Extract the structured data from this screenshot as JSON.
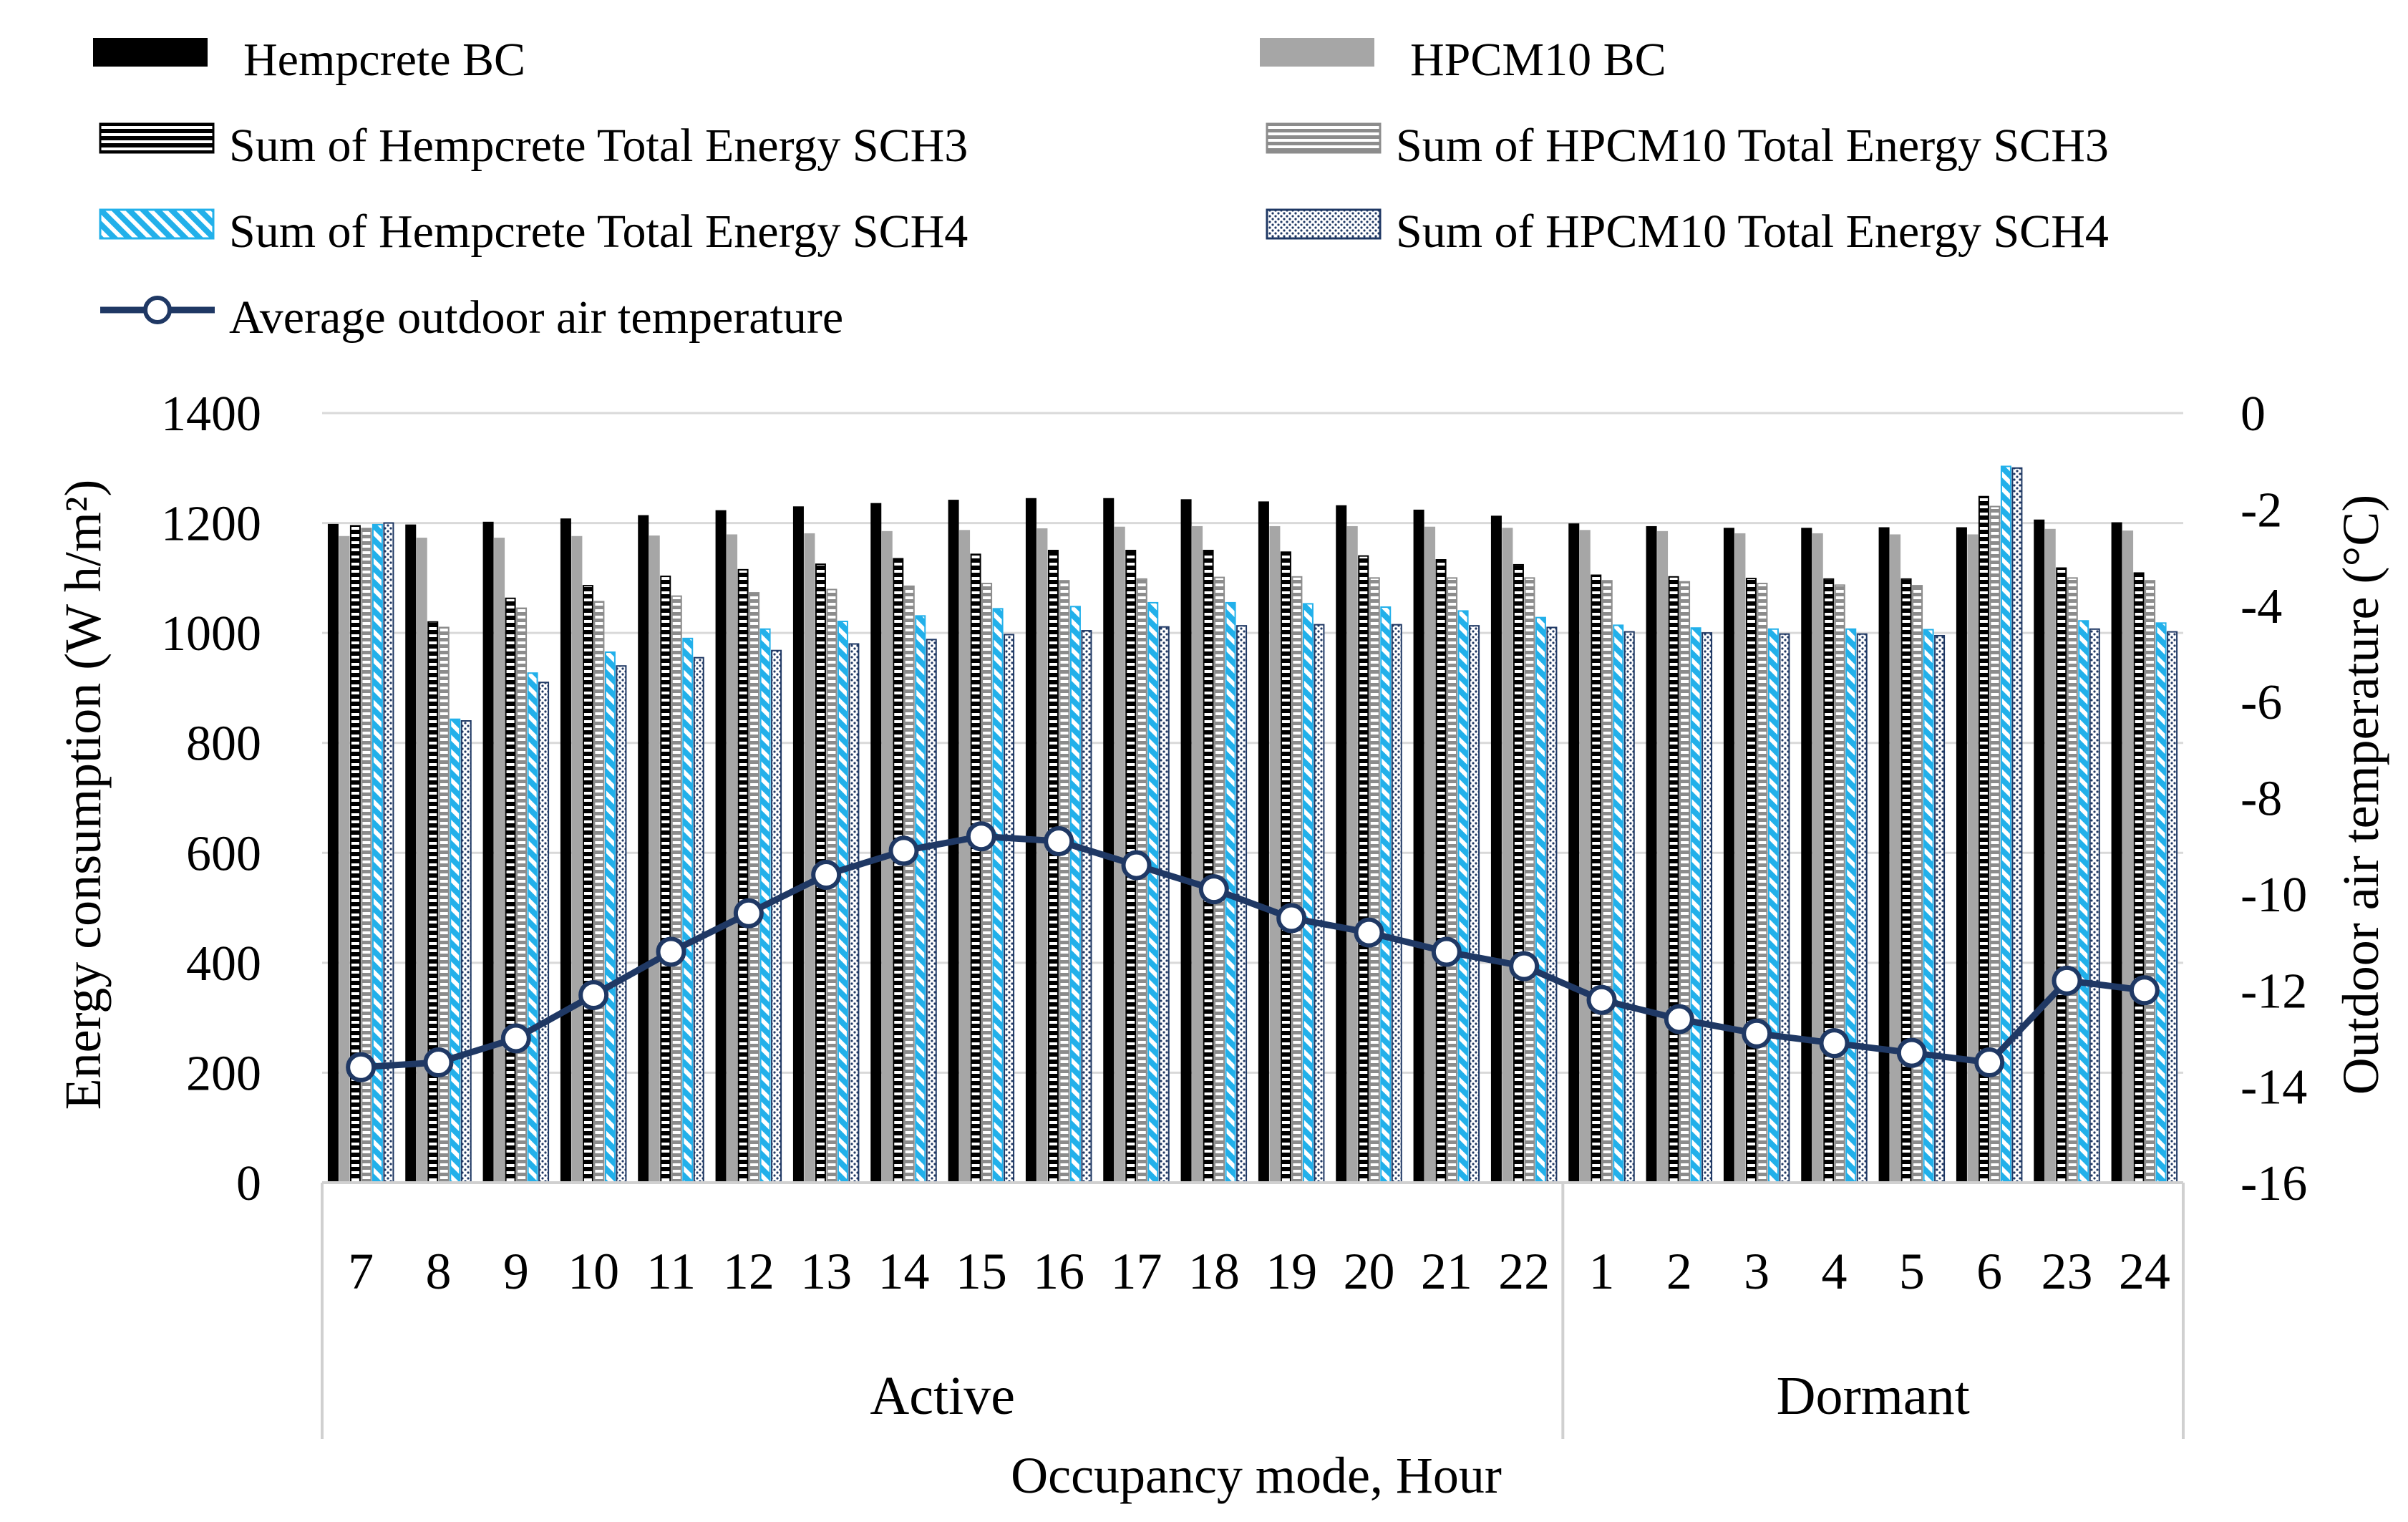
{
  "chart_data": {
    "type": "bar+line",
    "xlabel": "Occupancy mode, Hour",
    "ylabel": "Energy consumption (W h/m²)",
    "y2label": "Outdoor air temperature (°C)",
    "ylim": [
      0,
      1400
    ],
    "y2lim": [
      -16,
      0
    ],
    "yticks": [
      "0",
      "200",
      "400",
      "600",
      "800",
      "1000",
      "1200",
      "1400"
    ],
    "y2ticks": [
      "0",
      "-2",
      "-4",
      "-6",
      "-8",
      "-10",
      "-12",
      "-14",
      "-16"
    ],
    "groups": [
      {
        "label": "Active",
        "count": 16
      },
      {
        "label": "Dormant",
        "count": 8
      }
    ],
    "categories": [
      "7",
      "8",
      "9",
      "10",
      "11",
      "12",
      "13",
      "14",
      "15",
      "16",
      "17",
      "18",
      "19",
      "20",
      "21",
      "22",
      "1",
      "2",
      "3",
      "4",
      "5",
      "6",
      "23",
      "24"
    ],
    "series": [
      {
        "name": "Hempcrete BC",
        "style": "solid-black",
        "values": [
          1197,
          1196,
          1201,
          1207,
          1213,
          1222,
          1229,
          1235,
          1241,
          1244,
          1244,
          1242,
          1238,
          1231,
          1223,
          1212,
          1198,
          1193,
          1190,
          1190,
          1191,
          1191,
          1205,
          1200
        ]
      },
      {
        "name": "HPCM10 BC",
        "style": "solid-gray",
        "values": [
          1175,
          1172,
          1172,
          1175,
          1176,
          1178,
          1180,
          1184,
          1186,
          1189,
          1192,
          1193,
          1193,
          1193,
          1192,
          1190,
          1186,
          1184,
          1180,
          1180,
          1178,
          1178,
          1188,
          1185
        ]
      },
      {
        "name": "Sum of Hempcrete Total  Energy SCH3",
        "style": "hstripe-black",
        "values": [
          1195,
          1020,
          1063,
          1086,
          1103,
          1115,
          1125,
          1135,
          1143,
          1150,
          1150,
          1150,
          1147,
          1140,
          1133,
          1124,
          1105,
          1102,
          1099,
          1098,
          1098,
          1248,
          1118,
          1109
        ]
      },
      {
        "name": "Sum of HPCM10 Total Energy SCH3",
        "style": "hstripe-gray",
        "values": [
          1190,
          1010,
          1045,
          1057,
          1067,
          1073,
          1079,
          1085,
          1090,
          1095,
          1098,
          1101,
          1102,
          1100,
          1100,
          1100,
          1095,
          1093,
          1090,
          1087,
          1086,
          1230,
          1100,
          1095
        ]
      },
      {
        "name": "Sum of Hempcrete Total  Energy SCH4",
        "style": "diag-cyan",
        "values": [
          1197,
          843,
          927,
          965,
          990,
          1007,
          1021,
          1031,
          1044,
          1048,
          1055,
          1055,
          1053,
          1047,
          1040,
          1028,
          1014,
          1009,
          1007,
          1007,
          1006,
          1303,
          1022,
          1018
        ]
      },
      {
        "name": "Sum of HPCM10 Total Energy SCH4",
        "style": "dots-navy",
        "values": [
          1200,
          840,
          910,
          940,
          955,
          968,
          980,
          988,
          997,
          1004,
          1011,
          1013,
          1015,
          1015,
          1013,
          1010,
          1002,
          1000,
          998,
          998,
          995,
          1300,
          1007,
          1002
        ]
      }
    ],
    "line": {
      "name": "Average outdoor air temperature",
      "axis": "y2",
      "values": [
        -13.6,
        -13.5,
        -13.0,
        -12.1,
        -11.2,
        -10.4,
        -9.6,
        -9.1,
        -8.8,
        -8.9,
        -9.4,
        -9.9,
        -10.5,
        -10.8,
        -11.2,
        -11.5,
        -12.2,
        -12.6,
        -12.9,
        -13.1,
        -13.3,
        -13.5,
        -11.8,
        -12.0
      ]
    },
    "legend": [
      "Hempcrete BC",
      "HPCM10 BC",
      "Sum of Hempcrete Total  Energy SCH3",
      "Sum of HPCM10 Total Energy SCH3",
      "Sum of Hempcrete Total  Energy SCH4",
      "Sum of HPCM10 Total Energy SCH4",
      "Average outdoor air temperature"
    ],
    "colors": {
      "black": "#000000",
      "gray": "#a6a6a6",
      "cyan": "#22b0ea",
      "navy": "#1f3864",
      "grid": "#d9d9d9"
    }
  }
}
